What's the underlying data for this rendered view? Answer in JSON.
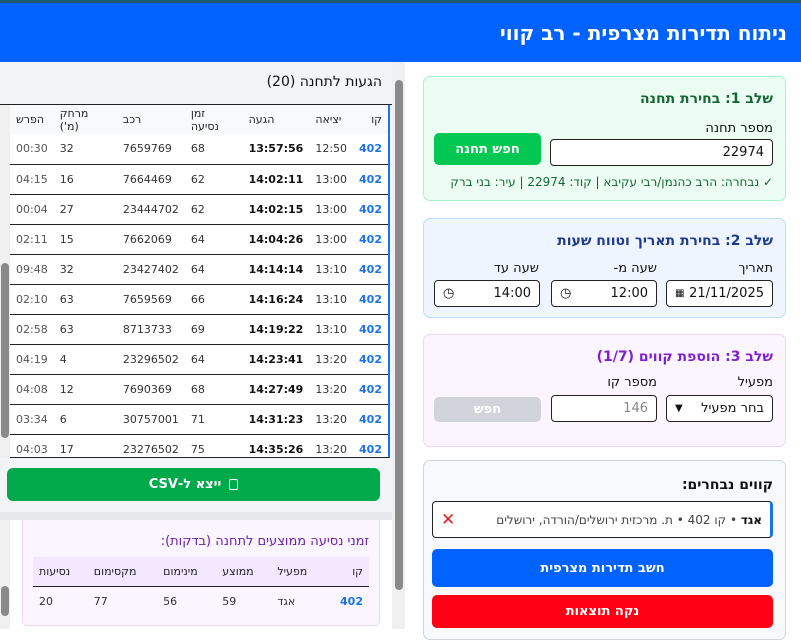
{
  "header": {
    "title": "ניתוח תדירות מצרפית - רב קווי"
  },
  "arrivals": {
    "title": "הגעות לתחנה (20)",
    "columns": [
      "קו",
      "יציאה",
      "הגעה",
      "זמן נסיעה",
      "רכב",
      "מרחק (מ')",
      "הפרש"
    ],
    "rows": [
      [
        "402",
        "12:50",
        "13:57:56",
        "68",
        "7659769",
        "32",
        "00:30"
      ],
      [
        "402",
        "13:00",
        "14:02:11",
        "62",
        "7664469",
        "16",
        "04:15"
      ],
      [
        "402",
        "13:00",
        "14:02:15",
        "62",
        "23444702",
        "27",
        "00:04"
      ],
      [
        "402",
        "13:00",
        "14:04:26",
        "64",
        "7662069",
        "15",
        "02:11"
      ],
      [
        "402",
        "13:10",
        "14:14:14",
        "64",
        "23427402",
        "32",
        "09:48"
      ],
      [
        "402",
        "13:10",
        "14:16:24",
        "66",
        "7659569",
        "63",
        "02:10"
      ],
      [
        "402",
        "13:10",
        "14:19:22",
        "69",
        "8713733",
        "63",
        "02:58"
      ],
      [
        "402",
        "13:20",
        "14:23:41",
        "64",
        "23296502",
        "4",
        "04:19"
      ],
      [
        "402",
        "13:20",
        "14:27:49",
        "68",
        "7690369",
        "12",
        "04:08"
      ],
      [
        "402",
        "13:20",
        "14:31:23",
        "71",
        "30757001",
        "6",
        "03:34"
      ],
      [
        "402",
        "13:20",
        "14:35:26",
        "75",
        "23276502",
        "17",
        "04:03"
      ]
    ],
    "export_label": "ייצא ל-CSV"
  },
  "averages": {
    "title": "זמני נסיעה ממוצעים לתחנה (בדקות):",
    "columns": [
      "קו",
      "מפעיל",
      "ממוצע",
      "מינימום",
      "מקסימום",
      "נסיעות"
    ],
    "rows": [
      [
        "402",
        "אגד",
        "59",
        "56",
        "77",
        "20"
      ]
    ]
  },
  "step1": {
    "title": "שלב 1: בחירת תחנה",
    "label": "מספר תחנה",
    "value": "22974",
    "button": "חפש תחנה",
    "selected": "✓ נבחרה: הרב כהנמן/רבי עקיבא | קוד: 22974 | עיר: בני ברק"
  },
  "step2": {
    "title": "שלב 2: בחירת תאריך וטווח שעות",
    "date_label": "תאריך",
    "date": "21/11/2025",
    "from_label": "שעה מ-",
    "from": "12:00",
    "to_label": "שעה עד",
    "to": "14:00"
  },
  "step3": {
    "title": "שלב 3: הוספת קווים (1/7)",
    "operator_label": "מפעיל",
    "operator": "בחר מפעיל",
    "line_label": "מספר קו",
    "line_placeholder": "146",
    "button": "חפש"
  },
  "selected": {
    "title": "קווים נבחרים:",
    "operator": "אגד",
    "desc": " • קו 402 • ת. מרכזית ירושלים/הורדה, ירושלים",
    "calc": "חשב תדירות מצרפית",
    "clear": "נקה תוצאות"
  },
  "colors": {
    "header": "#0062ff",
    "line_link": "#1a73e8",
    "export": "#00a94a",
    "calc": "#0062ff",
    "clear": "#ff0014",
    "search_station": "#00c853"
  }
}
